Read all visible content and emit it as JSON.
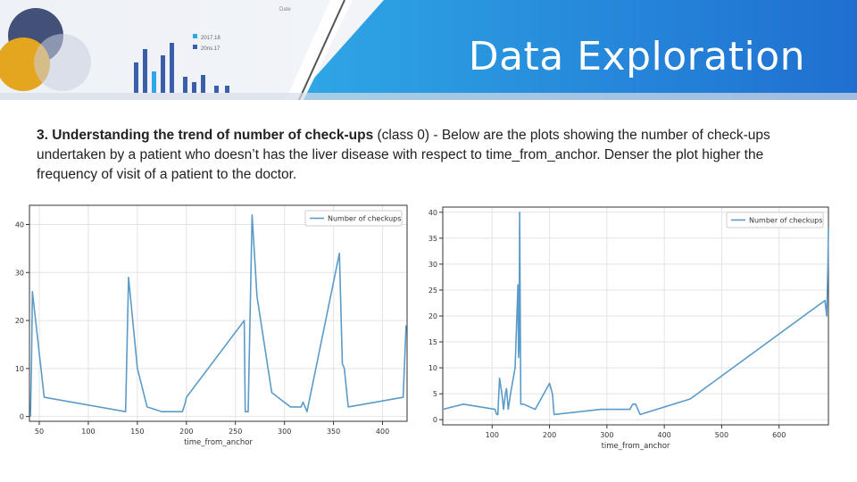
{
  "slide": {
    "title": "Data Exploration",
    "desc_bold": "3. Understanding the trend of number of check-ups",
    "desc_rest": " (class 0) - Below are the plots showing the number of check-ups undertaken by a patient who doesn’t has the liver disease with respect to time_from_anchor. Denser the plot higher the frequency of visit of a patient to the doctor.",
    "deco_labels": [
      "2017.18",
      "20ns.17",
      "Date"
    ]
  },
  "colors": {
    "banner_blue": "#1f7fd6",
    "banner_light": "#2fa7e6",
    "line": "#5b9bc9",
    "circle_navy": "#2b3a67",
    "circle_gold": "#e4a51f"
  },
  "chart_data": [
    {
      "type": "line",
      "series": [
        {
          "name": "Number of checkups",
          "x": [
            41,
            42,
            43,
            55,
            138,
            141,
            150,
            160,
            175,
            196,
            199,
            200,
            259,
            260,
            262,
            263,
            267,
            272,
            287,
            306,
            311,
            317,
            319,
            323,
            356,
            359,
            361,
            365,
            421,
            424
          ],
          "y": [
            0,
            10,
            26,
            4,
            1,
            29,
            10,
            2,
            1,
            1,
            3,
            4,
            20,
            1,
            1,
            1,
            42,
            25,
            5,
            2,
            2,
            2,
            3,
            1,
            34,
            11,
            10,
            2,
            4,
            19
          ]
        }
      ],
      "xlim": [
        40,
        425
      ],
      "ylim": [
        -1,
        44
      ],
      "xticks": [
        50,
        100,
        150,
        200,
        250,
        300,
        350,
        400
      ],
      "yticks": [
        0,
        10,
        20,
        30,
        40
      ],
      "xlabel": "time_from_anchor",
      "legend": "top-right",
      "grid": true
    },
    {
      "type": "line",
      "series": [
        {
          "name": "Number of checkups",
          "x": [
            14,
            50,
            105,
            108,
            110,
            113,
            117,
            120,
            123,
            125,
            128,
            132,
            140,
            145,
            146,
            147,
            148,
            150,
            155,
            175,
            200,
            205,
            208,
            290,
            340,
            345,
            350,
            358,
            445,
            680,
            683,
            685,
            686
          ],
          "y": [
            2,
            3,
            2,
            1,
            1,
            8,
            5,
            2,
            5,
            6,
            2,
            5,
            10,
            26,
            12,
            14,
            40,
            3,
            3,
            2,
            7,
            5,
            1,
            2,
            2,
            3,
            3,
            1,
            4,
            23,
            20,
            30,
            37
          ]
        }
      ],
      "xlim": [
        14,
        686
      ],
      "ylim": [
        -1,
        41
      ],
      "xticks": [
        100,
        200,
        300,
        400,
        500,
        600
      ],
      "yticks": [
        0,
        5,
        10,
        15,
        20,
        25,
        30,
        35,
        40
      ],
      "xlabel": "time_from_anchor",
      "legend": "top-right",
      "grid": true
    }
  ]
}
